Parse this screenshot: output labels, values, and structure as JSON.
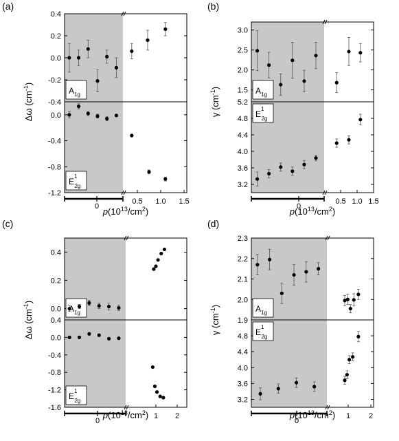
{
  "figure": {
    "panel_labels": [
      "(a)",
      "(b)",
      "(c)",
      "(d)"
    ],
    "shade_color": "#c8c8c8",
    "point_color": "#000000",
    "gap_tick_label": "0",
    "break_mark": "//"
  },
  "chart_data": [
    {
      "panel": "(a)",
      "type": "scatter",
      "xlabel": "p(10¹³/cm²)",
      "xlabel_parts": {
        "var": "p",
        "rest": "(10",
        "exp": "13",
        "rest2": "/cm",
        "exp2": "2",
        "close": ")"
      },
      "ylabel": "Δω (cm⁻¹)",
      "ylabel_parts": {
        "base": "Δω (cm",
        "exp": "-1",
        "close": ")"
      },
      "x_ticks_right": [
        "0.5",
        "1.0",
        "1.5"
      ],
      "subplots": [
        {
          "mode_label": "A1g",
          "mode_parts": {
            "base": "A",
            "sub": "1g",
            "sup": ""
          },
          "y_ticks": [
            "0.4",
            "0.2",
            "0.0",
            "-0.2",
            "-0.4"
          ],
          "ylim": [
            -0.4,
            0.4
          ],
          "gated": [
            {
              "y": 0.0,
              "err": 0.13
            },
            {
              "y": 0.0,
              "err": 0.07
            },
            {
              "y": 0.08,
              "err": 0.08
            },
            {
              "y": -0.21,
              "err": 0.1
            },
            {
              "y": 0.01,
              "err": 0.06
            },
            {
              "y": -0.09,
              "err": 0.09
            }
          ],
          "doped": [
            {
              "x": 0.38,
              "y": 0.06,
              "err": 0.07
            },
            {
              "x": 0.72,
              "y": 0.16,
              "err": 0.09
            },
            {
              "x": 1.1,
              "y": 0.26,
              "err": 0.06
            }
          ]
        },
        {
          "mode_label": "E12g",
          "mode_parts": {
            "base": "E",
            "sub": "2g",
            "sup": "1"
          },
          "y_ticks": [
            "0.0",
            "-0.4",
            "-0.8",
            "-1.2"
          ],
          "ylim": [
            -1.2,
            0.2
          ],
          "gated": [
            {
              "y": 0.0,
              "err": 0.05
            },
            {
              "y": 0.13,
              "err": 0.04
            },
            {
              "y": 0.02,
              "err": 0.03
            },
            {
              "y": -0.02,
              "err": 0.03
            },
            {
              "y": -0.06,
              "err": 0.03
            },
            {
              "y": -0.01,
              "err": 0.02
            }
          ],
          "doped": [
            {
              "x": 0.38,
              "y": -0.32,
              "err": 0.02
            },
            {
              "x": 0.75,
              "y": -0.88,
              "err": 0.03
            },
            {
              "x": 1.1,
              "y": -0.99,
              "err": 0.03
            }
          ]
        }
      ]
    },
    {
      "panel": "(b)",
      "type": "scatter",
      "xlabel": "p(10¹³/cm²)",
      "xlabel_parts": {
        "var": "p",
        "rest": "(10",
        "exp": "13",
        "rest2": "/cm",
        "exp2": "2",
        "close": ")"
      },
      "ylabel": "γ (cm⁻¹)",
      "ylabel_parts": {
        "base": "γ (cm",
        "exp": "-1",
        "close": ")"
      },
      "x_ticks_right": [
        "0.5",
        "1.0",
        "1.5"
      ],
      "subplots": [
        {
          "mode_label": "A1g",
          "mode_parts": {
            "base": "A",
            "sub": "1g",
            "sup": ""
          },
          "y_ticks": [
            "3.0",
            "2.5",
            "2.0",
            "1.5"
          ],
          "ylim": [
            1.2,
            3.2
          ],
          "gated": [
            {
              "y": 2.48,
              "err": 0.5
            },
            {
              "y": 2.12,
              "err": 0.32
            },
            {
              "y": 1.63,
              "err": 0.27
            },
            {
              "y": 2.24,
              "err": 0.45
            },
            {
              "y": 1.72,
              "err": 0.27
            },
            {
              "y": 2.36,
              "err": 0.33
            }
          ],
          "doped": [
            {
              "x": 0.38,
              "y": 1.68,
              "err": 0.25
            },
            {
              "x": 0.75,
              "y": 2.46,
              "err": 0.35
            },
            {
              "x": 1.1,
              "y": 2.43,
              "err": 0.23
            }
          ]
        },
        {
          "mode_label": "E12g",
          "mode_parts": {
            "base": "E",
            "sub": "2g",
            "sup": "1"
          },
          "y_ticks": [
            "5.2",
            "4.8",
            "4.4",
            "4.0",
            "3.6",
            "3.2"
          ],
          "ylim": [
            3.0,
            5.2
          ],
          "gated": [
            {
              "y": 3.33,
              "err": 0.17
            },
            {
              "y": 3.46,
              "err": 0.1
            },
            {
              "y": 3.62,
              "err": 0.1
            },
            {
              "y": 3.52,
              "err": 0.1
            },
            {
              "y": 3.68,
              "err": 0.1
            },
            {
              "y": 3.84,
              "err": 0.07
            }
          ],
          "doped": [
            {
              "x": 0.38,
              "y": 4.2,
              "err": 0.1
            },
            {
              "x": 0.75,
              "y": 4.28,
              "err": 0.1
            },
            {
              "x": 1.1,
              "y": 4.77,
              "err": 0.13
            }
          ]
        }
      ]
    },
    {
      "panel": "(c)",
      "type": "scatter",
      "xlabel": "p(10¹³/cm²)",
      "xlabel_parts": {
        "var": "p",
        "rest": "(10",
        "exp": "13",
        "rest2": "/cm",
        "exp2": "2",
        "close": ")"
      },
      "ylabel": "Δω (cm⁻¹)",
      "ylabel_parts": {
        "base": "Δω (cm",
        "exp": "-1",
        "close": ")"
      },
      "x_ticks_right": [
        "1",
        "2"
      ],
      "subplots": [
        {
          "mode_label": "A1g",
          "mode_parts": {
            "base": "A",
            "sub": "1g",
            "sup": ""
          },
          "y_ticks": [
            "0.4",
            "0.2",
            "0.0"
          ],
          "ylim": [
            -0.08,
            0.5
          ],
          "gated": [
            {
              "y": 0.0,
              "err": 0.02
            },
            {
              "y": 0.015,
              "err": 0.015
            },
            {
              "y": 0.04,
              "err": 0.02
            },
            {
              "y": 0.02,
              "err": 0.02
            },
            {
              "y": 0.015,
              "err": 0.025
            },
            {
              "y": 0.005,
              "err": 0.02
            }
          ],
          "doped": [
            {
              "x": 0.9,
              "y": 0.28
            },
            {
              "x": 1.0,
              "y": 0.3
            },
            {
              "x": 1.1,
              "y": 0.345
            },
            {
              "x": 1.25,
              "y": 0.39
            },
            {
              "x": 1.4,
              "y": 0.42
            }
          ]
        },
        {
          "mode_label": "E12g",
          "mode_parts": {
            "base": "E",
            "sub": "2g",
            "sup": "1"
          },
          "y_ticks": [
            "0.4",
            "0.0",
            "-0.4",
            "-0.8",
            "-1.2",
            "-1.6"
          ],
          "ylim": [
            -1.6,
            0.4
          ],
          "gated": [
            {
              "y": 0.0,
              "err": 0.03
            },
            {
              "y": 0.0,
              "err": 0.03
            },
            {
              "y": 0.08,
              "err": 0.03
            },
            {
              "y": 0.05,
              "err": 0.03
            },
            {
              "y": -0.03,
              "err": 0.03
            },
            {
              "y": -0.02,
              "err": 0.03
            }
          ],
          "doped": [
            {
              "x": 0.85,
              "y": -0.68
            },
            {
              "x": 0.95,
              "y": -1.12
            },
            {
              "x": 1.05,
              "y": -1.25
            },
            {
              "x": 1.2,
              "y": -1.35
            },
            {
              "x": 1.35,
              "y": -1.38
            }
          ]
        }
      ]
    },
    {
      "panel": "(d)",
      "type": "scatter",
      "xlabel": "p(10¹³/cm²)",
      "xlabel_parts": {
        "var": "p",
        "rest": "(10",
        "exp": "13",
        "rest2": "/cm",
        "exp2": "2",
        "close": ")"
      },
      "ylabel": "γ (cm⁻¹)",
      "ylabel_parts": {
        "base": "γ (cm",
        "exp": "-1",
        "close": ")"
      },
      "x_ticks_right": [
        "1",
        "2"
      ],
      "subplots": [
        {
          "mode_label": "A1g",
          "mode_parts": {
            "base": "A",
            "sub": "1g",
            "sup": ""
          },
          "y_ticks": [
            "2.3",
            "2.2",
            "2.1",
            "2.0",
            "1.9"
          ],
          "ylim": [
            1.9,
            2.3
          ],
          "gated": [
            {
              "y": 2.17,
              "err": 0.05
            },
            {
              "y": 2.195,
              "err": 0.05
            },
            {
              "y": 2.03,
              "err": 0.05
            },
            {
              "y": 2.12,
              "err": 0.05
            },
            {
              "y": 2.135,
              "err": 0.05
            },
            {
              "y": 2.15,
              "err": 0.03
            }
          ],
          "doped": [
            {
              "x": 0.85,
              "y": 1.995,
              "err": 0.025
            },
            {
              "x": 0.98,
              "y": 2.0,
              "err": 0.025
            },
            {
              "x": 1.1,
              "y": 1.955,
              "err": 0.02
            },
            {
              "x": 1.25,
              "y": 1.998,
              "err": 0.03
            },
            {
              "x": 1.45,
              "y": 2.025,
              "err": 0.025
            }
          ]
        },
        {
          "mode_label": "E12g",
          "mode_parts": {
            "base": "E",
            "sub": "2g",
            "sup": "1"
          },
          "y_ticks": [
            "4.8",
            "4.4",
            "4.0",
            "3.6",
            "3.2"
          ],
          "ylim": [
            3.0,
            5.2
          ],
          "gated": [
            {
              "y": 3.34,
              "err": 0.15
            },
            {
              "y": 3.47,
              "err": 0.12
            },
            {
              "y": 3.62,
              "err": 0.12
            },
            {
              "y": 3.52,
              "err": 0.12
            }
          ],
          "doped": [
            {
              "x": 0.85,
              "y": 3.68,
              "err": 0.1
            },
            {
              "x": 0.95,
              "y": 3.82,
              "err": 0.1
            },
            {
              "x": 1.05,
              "y": 4.2,
              "err": 0.1
            },
            {
              "x": 1.2,
              "y": 4.27,
              "err": 0.1
            },
            {
              "x": 1.45,
              "y": 4.78,
              "err": 0.13
            }
          ]
        }
      ]
    }
  ]
}
